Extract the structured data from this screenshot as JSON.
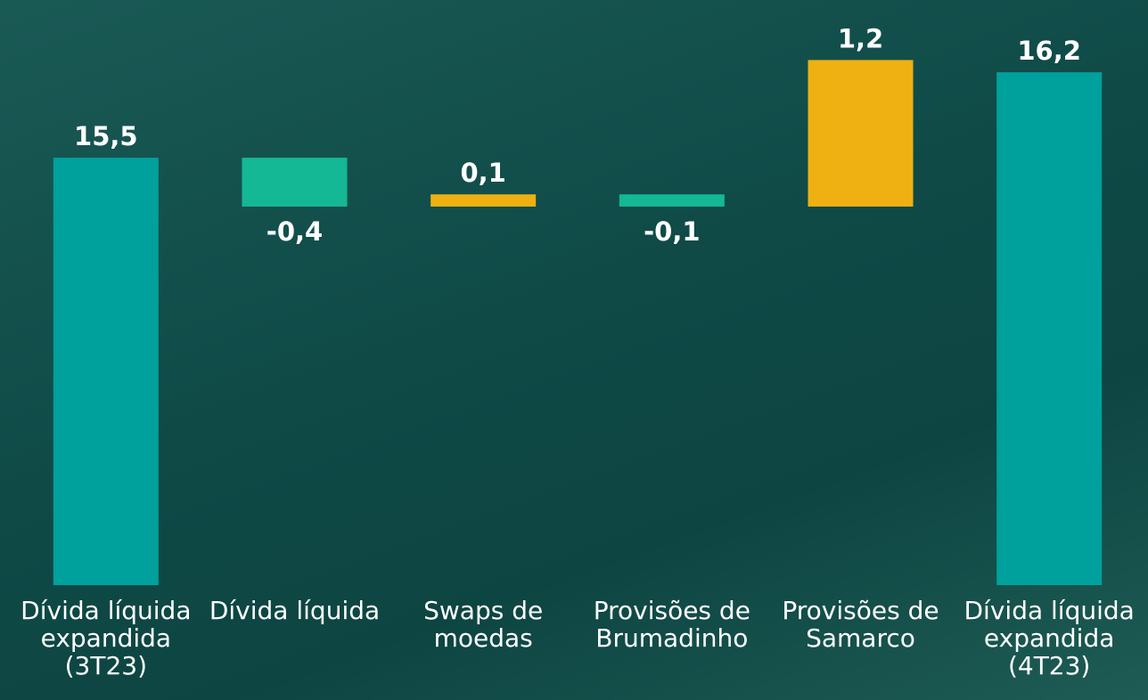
{
  "chart_data": {
    "type": "waterfall",
    "categories": [
      "Dívida líquida expandida (3T23)",
      "Dívida líquida",
      "Swaps de moedas",
      "Provisões de Brumadinho",
      "Provisões de Samarco",
      "Dívida líquida expandida (4T23)"
    ],
    "values": [
      15.5,
      -0.4,
      0.1,
      -0.1,
      1.2,
      16.2
    ],
    "value_labels": [
      "15,5",
      "-0,4",
      "0,1",
      "-0,1",
      "1,2",
      "16,2"
    ],
    "colors": [
      "#00a09c",
      "#14b894",
      "#eeb111",
      "#14b894",
      "#eeb111",
      "#00a09c"
    ],
    "ylim": [
      12,
      16.5
    ]
  }
}
